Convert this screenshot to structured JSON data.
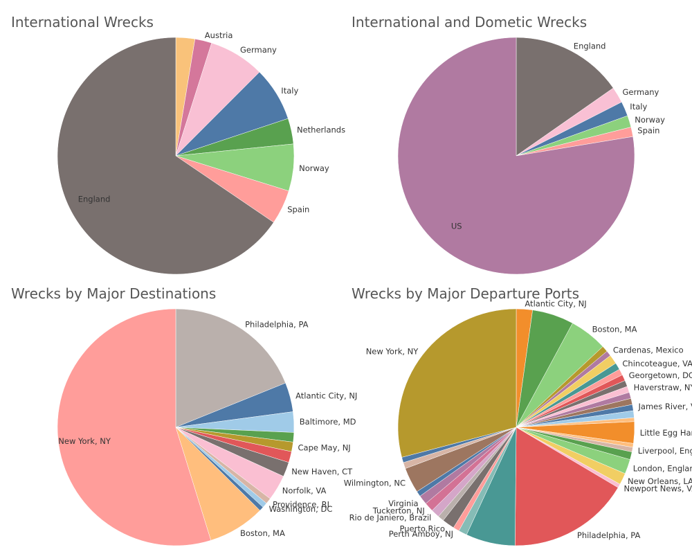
{
  "chart_data": [
    {
      "type": "pie",
      "title": "International Wrecks",
      "slices": [
        {
          "label": "Austria",
          "value": 2.6,
          "color": "#f9c27a",
          "show_label": false
        },
        {
          "label": "Austria",
          "value": 2.3,
          "color": "#d4779b",
          "show_label": true
        },
        {
          "label": "Germany",
          "value": 7.6,
          "color": "#f9c0d4",
          "show_label": true
        },
        {
          "label": "Italy",
          "value": 7.4,
          "color": "#4e79a7",
          "show_label": true
        },
        {
          "label": "Netherlands",
          "value": 3.5,
          "color": "#59a14f",
          "show_label": true
        },
        {
          "label": "Norway",
          "value": 6.4,
          "color": "#8cd17d",
          "show_label": true
        },
        {
          "label": "Spain",
          "value": 4.7,
          "color": "#ff9d9a",
          "show_label": true
        },
        {
          "label": "England",
          "value": 65.5,
          "color": "#79706e",
          "show_label": true
        }
      ]
    },
    {
      "type": "pie",
      "title": "International and Dometic Wrecks",
      "slices": [
        {
          "label": "England",
          "value": 15.3,
          "color": "#79706e",
          "show_label": true
        },
        {
          "label": "Germany",
          "value": 2.2,
          "color": "#f9c0d4",
          "show_label": true
        },
        {
          "label": "Italy",
          "value": 2.0,
          "color": "#4e79a7",
          "show_label": true
        },
        {
          "label": "Norway",
          "value": 1.6,
          "color": "#8cd17d",
          "show_label": true
        },
        {
          "label": "Spain",
          "value": 1.3,
          "color": "#ff9d9a",
          "show_label": true
        },
        {
          "label": "US",
          "value": 77.6,
          "color": "#b07aa1",
          "show_label": true
        }
      ]
    },
    {
      "type": "pie",
      "title": "Wrecks by Major Destinations",
      "slices": [
        {
          "label": "Philadelphia, PA",
          "value": 18.9,
          "color": "#bab0ac",
          "show_label": true
        },
        {
          "label": "Atlantic City, NJ",
          "value": 4.0,
          "color": "#4e79a7",
          "show_label": true
        },
        {
          "label": "Baltimore, MD",
          "value": 2.8,
          "color": "#a0cbe8",
          "show_label": true
        },
        {
          "label": "",
          "value": 1.3,
          "color": "#59a14f",
          "show_label": false
        },
        {
          "label": "Cape May, NJ",
          "value": 1.3,
          "color": "#b6992d",
          "show_label": true
        },
        {
          "label": "",
          "value": 1.5,
          "color": "#e15759",
          "show_label": false
        },
        {
          "label": "New Haven, CT",
          "value": 2.0,
          "color": "#79706e",
          "show_label": true
        },
        {
          "label": "Norfolk, VA",
          "value": 3.5,
          "color": "#fabfd2",
          "show_label": true
        },
        {
          "label": "Providence, RI",
          "value": 0.8,
          "color": "#d7b5a6",
          "show_label": true
        },
        {
          "label": "Washington, DC",
          "value": 0.7,
          "color": "#a0cbe8",
          "show_label": true
        },
        {
          "label": "",
          "value": 0.6,
          "color": "#4e79a7",
          "show_label": false
        },
        {
          "label": "Boston, MA",
          "value": 7.8,
          "color": "#ffbe7d",
          "show_label": true
        },
        {
          "label": "New York, NY",
          "value": 54.8,
          "color": "#ff9d9a",
          "show_label": true
        }
      ]
    },
    {
      "type": "pie",
      "title": "Wrecks by Major Departure Ports",
      "slices": [
        {
          "label": "Atlantic City, NJ",
          "value": 2.1,
          "color": "#f28e2b",
          "show_label": true
        },
        {
          "label": "",
          "value": 5.4,
          "color": "#59a14f",
          "show_label": false
        },
        {
          "label": "Boston, MA",
          "value": 4.9,
          "color": "#8cd17d",
          "show_label": true
        },
        {
          "label": "",
          "value": 0.8,
          "color": "#b6992d",
          "show_label": false
        },
        {
          "label": "Cardenas, Mexico",
          "value": 0.7,
          "color": "#b07aa1",
          "show_label": true
        },
        {
          "label": "",
          "value": 1.2,
          "color": "#f1ce63",
          "show_label": false
        },
        {
          "label": "Chincoteague, VA",
          "value": 0.9,
          "color": "#499894",
          "show_label": true
        },
        {
          "label": "",
          "value": 0.8,
          "color": "#ff9d9a",
          "show_label": false
        },
        {
          "label": "Georgetown, DC",
          "value": 0.8,
          "color": "#e15759",
          "show_label": true
        },
        {
          "label": "",
          "value": 0.8,
          "color": "#79706e",
          "show_label": false
        },
        {
          "label": "Haverstraw, NY",
          "value": 0.8,
          "color": "#fabfd2",
          "show_label": true
        },
        {
          "label": "",
          "value": 0.8,
          "color": "#b07aa1",
          "show_label": false
        },
        {
          "label": "",
          "value": 0.8,
          "color": "#9d7660",
          "show_label": false
        },
        {
          "label": "James River, VA",
          "value": 0.8,
          "color": "#4e79a7",
          "show_label": true
        },
        {
          "label": "",
          "value": 0.9,
          "color": "#a0cbe8",
          "show_label": false
        },
        {
          "label": "",
          "value": 0.5,
          "color": "#ffbe7d",
          "show_label": false
        },
        {
          "label": "Little Egg Harbor, NJ",
          "value": 2.8,
          "color": "#f28e2b",
          "show_label": true
        },
        {
          "label": "",
          "value": 0.5,
          "color": "#ffbe7d",
          "show_label": false
        },
        {
          "label": "Liverpool, England",
          "value": 0.6,
          "color": "#d7b5a6",
          "show_label": true
        },
        {
          "label": "",
          "value": 1.0,
          "color": "#59a14f",
          "show_label": false
        },
        {
          "label": "London, England",
          "value": 1.9,
          "color": "#8cd17d",
          "show_label": true
        },
        {
          "label": "New Orleans, LA",
          "value": 1.5,
          "color": "#f1ce63",
          "show_label": true
        },
        {
          "label": "Newport News, VA",
          "value": 0.5,
          "color": "#fabfd2",
          "show_label": true
        },
        {
          "label": "Philadelphia, PA",
          "value": 15.8,
          "color": "#e15759",
          "show_label": true
        },
        {
          "label": "",
          "value": 6.4,
          "color": "#499894",
          "show_label": false
        },
        {
          "label": "",
          "value": 1.1,
          "color": "#86bcb6",
          "show_label": false
        },
        {
          "label": "Perth Amboy, NJ",
          "value": 0.8,
          "color": "#ff9d9a",
          "show_label": true
        },
        {
          "label": "Puerto Rico",
          "value": 1.6,
          "color": "#79706e",
          "show_label": true
        },
        {
          "label": "",
          "value": 0.8,
          "color": "#bab0ac",
          "show_label": false
        },
        {
          "label": "Rio de Janiero, Brazil",
          "value": 1.1,
          "color": "#d4a6c8",
          "show_label": true
        },
        {
          "label": "Tuckerton, NJ",
          "value": 1.2,
          "color": "#d37295",
          "show_label": true
        },
        {
          "label": "Virginia",
          "value": 1.2,
          "color": "#b07aa1",
          "show_label": true
        },
        {
          "label": "",
          "value": 0.7,
          "color": "#4e79a7",
          "show_label": false
        },
        {
          "label": "Wilmington, NC",
          "value": 3.3,
          "color": "#9d7660",
          "show_label": true
        },
        {
          "label": "",
          "value": 0.8,
          "color": "#d7b5a6",
          "show_label": false
        },
        {
          "label": "",
          "value": 0.7,
          "color": "#4e79a7",
          "show_label": false
        },
        {
          "label": "New York, NY",
          "value": 27.6,
          "color": "#b6992d",
          "show_label": true
        }
      ]
    }
  ]
}
